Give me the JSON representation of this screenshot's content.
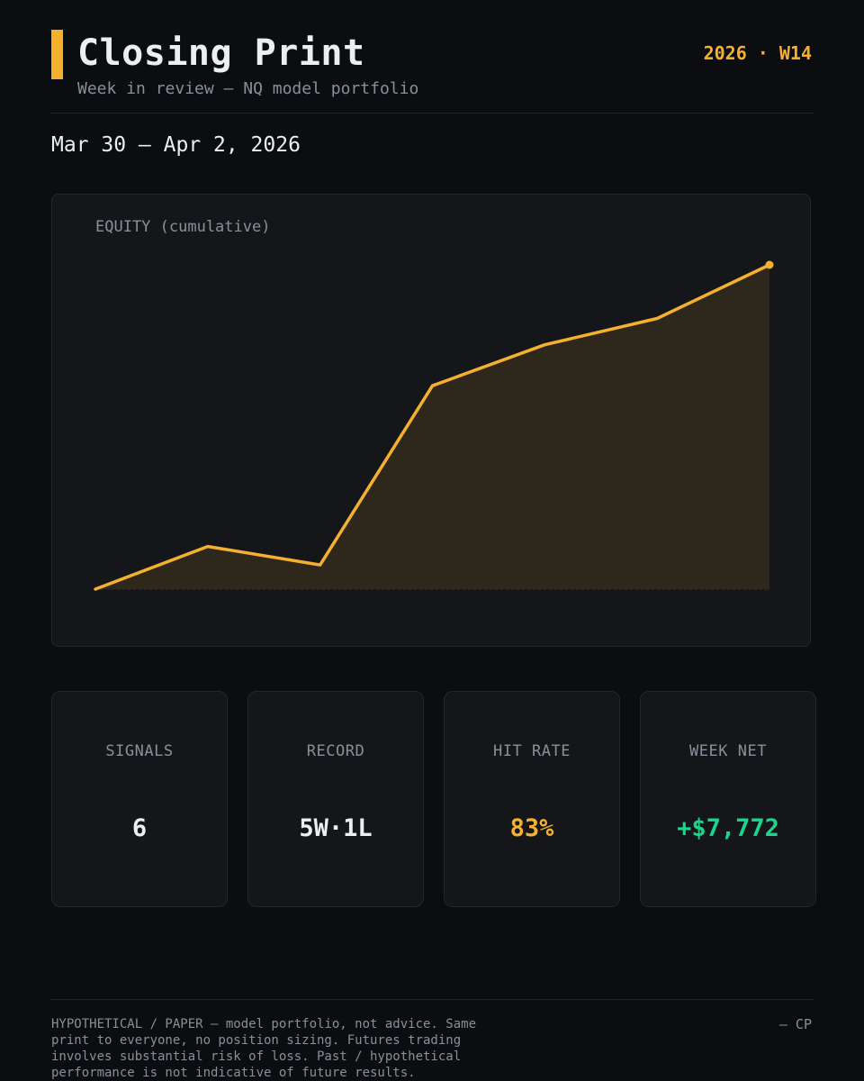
{
  "header": {
    "title": "Closing Print",
    "subtitle": "Week in review — NQ model portfolio",
    "week_tag": "2026 · W14",
    "date_range": "Mar 30 – Apr 2, 2026"
  },
  "colors": {
    "accent": "#f5b02e",
    "positive": "#19d68c",
    "background": "#0b0d10",
    "card": "#14161a"
  },
  "chart_data": {
    "type": "area",
    "title": "EQUITY (cumulative)",
    "x": [
      0,
      1,
      2,
      3,
      4,
      5,
      6
    ],
    "values": [
      0,
      1318,
      748,
      6272,
      7536,
      8348,
      10000
    ],
    "ylim": [
      0,
      10000
    ],
    "grid": false,
    "legend": "none",
    "line_color": "#f5b02e"
  },
  "stats": [
    {
      "label": "SIGNALS",
      "value": "6",
      "tone": "default"
    },
    {
      "label": "RECORD",
      "value": "5W·1L",
      "tone": "default"
    },
    {
      "label": "HIT RATE",
      "value": "83%",
      "tone": "amber"
    },
    {
      "label": "WEEK NET",
      "value": "+$7,772",
      "tone": "green"
    }
  ],
  "footer": {
    "disclaimer": "HYPOTHETICAL / PAPER — model portfolio, not advice. Same print to everyone, no position sizing. Futures trading involves substantial risk of loss. Past / hypothetical performance is not indicative of future results.",
    "signoff": "— CP"
  }
}
